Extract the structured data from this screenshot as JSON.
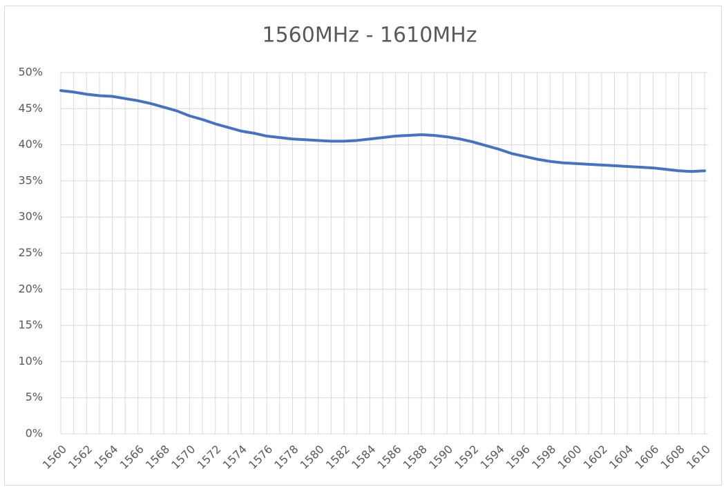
{
  "chart_data": {
    "type": "line",
    "title": "1560MHz - 1610MHz",
    "categories": [
      1560,
      null,
      1562,
      null,
      1564,
      null,
      1566,
      null,
      1568,
      null,
      1570,
      null,
      1572,
      null,
      1574,
      null,
      1576,
      null,
      1578,
      null,
      1580,
      null,
      1582,
      null,
      1584,
      null,
      1586,
      null,
      1588,
      null,
      1590,
      null,
      1592,
      null,
      1594,
      null,
      1596,
      null,
      1598,
      null,
      1600,
      null,
      1602,
      null,
      1604,
      null,
      1606,
      null,
      1608,
      null,
      1610
    ],
    "values": [
      47.5,
      47.3,
      47.0,
      46.8,
      46.7,
      46.4,
      46.1,
      45.7,
      45.2,
      44.7,
      44.0,
      43.5,
      42.9,
      42.4,
      41.9,
      41.6,
      41.2,
      41.0,
      40.8,
      40.7,
      40.6,
      40.5,
      40.5,
      40.6,
      40.8,
      41.0,
      41.2,
      41.3,
      41.4,
      41.3,
      41.1,
      40.8,
      40.4,
      39.9,
      39.4,
      38.8,
      38.4,
      38.0,
      37.7,
      37.5,
      37.4,
      37.3,
      37.2,
      37.1,
      37.0,
      36.9,
      36.8,
      36.6,
      36.4,
      36.3,
      36.4
    ],
    "color": "#4472c4",
    "ylim": [
      0,
      50
    ],
    "yticks": [
      {
        "value": 0,
        "label": "0%"
      },
      {
        "value": 5,
        "label": "5%"
      },
      {
        "value": 10,
        "label": "10%"
      },
      {
        "value": 15,
        "label": "15%"
      },
      {
        "value": 20,
        "label": "20%"
      },
      {
        "value": 25,
        "label": "25%"
      },
      {
        "value": 30,
        "label": "30%"
      },
      {
        "value": 35,
        "label": "35%"
      },
      {
        "value": 40,
        "label": "40%"
      },
      {
        "value": 45,
        "label": "45%"
      },
      {
        "value": 50,
        "label": "50%"
      }
    ],
    "grid": true
  }
}
